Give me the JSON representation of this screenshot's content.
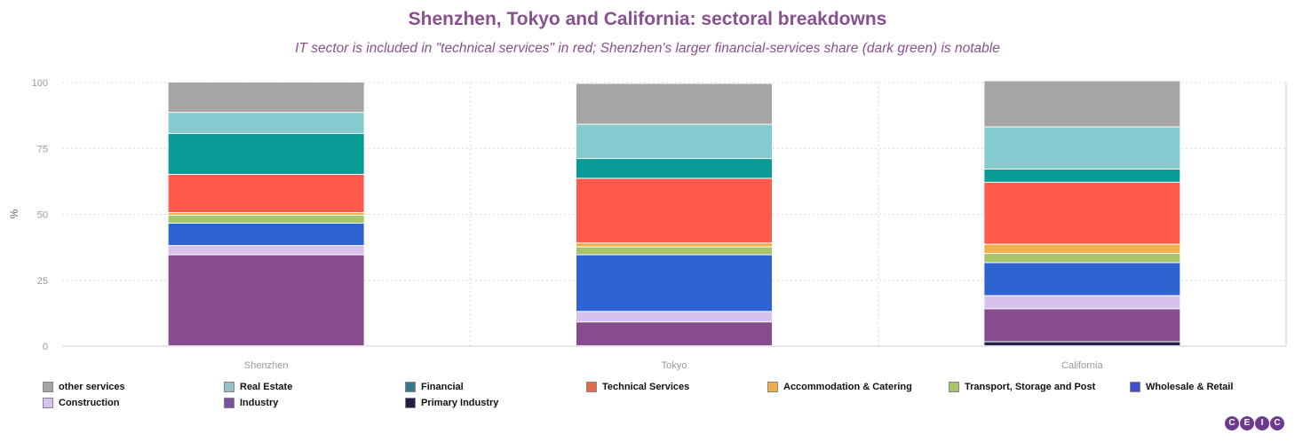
{
  "title": "Shenzhen, Tokyo and California: sectoral breakdowns",
  "subtitle": "IT sector is included in \"technical services\" in red; Shenzhen's larger financial-services share (dark green) is notable",
  "logo": [
    "C",
    "E",
    "I",
    "C"
  ],
  "chart_data": {
    "type": "bar",
    "stacked": true,
    "title": "Shenzhen, Tokyo and California: sectoral breakdowns",
    "ylabel": "%",
    "ylim": [
      0,
      100
    ],
    "yticks": [
      0,
      25,
      50,
      75,
      100
    ],
    "grid": true,
    "legend_position": "bottom",
    "categories": [
      "Shenzhen",
      "Tokyo",
      "California"
    ],
    "series": [
      {
        "name": "Primary Industry",
        "color": "#241d4a",
        "values": [
          0,
          0,
          1.5
        ]
      },
      {
        "name": "Industry",
        "color": "#874c8d",
        "values": [
          34.5,
          9,
          12.5
        ]
      },
      {
        "name": "Construction",
        "color": "#d7c2ee",
        "values": [
          3.5,
          4,
          5
        ]
      },
      {
        "name": "Wholesale & Retail",
        "color": "#2e63d2",
        "values": [
          8.5,
          21.5,
          12.5
        ]
      },
      {
        "name": "Transport, Storage and Post",
        "color": "#a8c46a",
        "values": [
          3,
          3,
          3.5
        ]
      },
      {
        "name": "Accommodation & Catering",
        "color": "#f1b04c",
        "values": [
          1,
          1.5,
          3.5
        ]
      },
      {
        "name": "Technical Services",
        "color": "#ff5a4c",
        "values": [
          14.5,
          24.5,
          23.5
        ]
      },
      {
        "name": "Financial",
        "color": "#099b96",
        "values": [
          15.5,
          7.5,
          5
        ]
      },
      {
        "name": "Real Estate",
        "color": "#83cbcc",
        "values": [
          8,
          13,
          16
        ]
      },
      {
        "name": "other services",
        "color": "#a6a4a4",
        "values": [
          11.5,
          15.5,
          17.5
        ]
      }
    ],
    "legend_order": [
      "other services",
      "Real Estate",
      "Financial",
      "Technical Services",
      "Accommodation & Catering",
      "Transport, Storage and Post",
      "Wholesale & Retail",
      "Construction",
      "Industry",
      "Primary Industry"
    ],
    "legend_swatch_colors": {
      "other services": "#a6a4a4",
      "Real Estate": "#95bfc9",
      "Financial": "#33788f",
      "Technical Services": "#e16a49",
      "Accommodation & Catering": "#efae48",
      "Transport, Storage and Post": "#a8c46a",
      "Wholesale & Retail": "#3f4fd0",
      "Construction": "#d7c2ee",
      "Industry": "#7a4f9b",
      "Primary Industry": "#241d4a"
    }
  }
}
